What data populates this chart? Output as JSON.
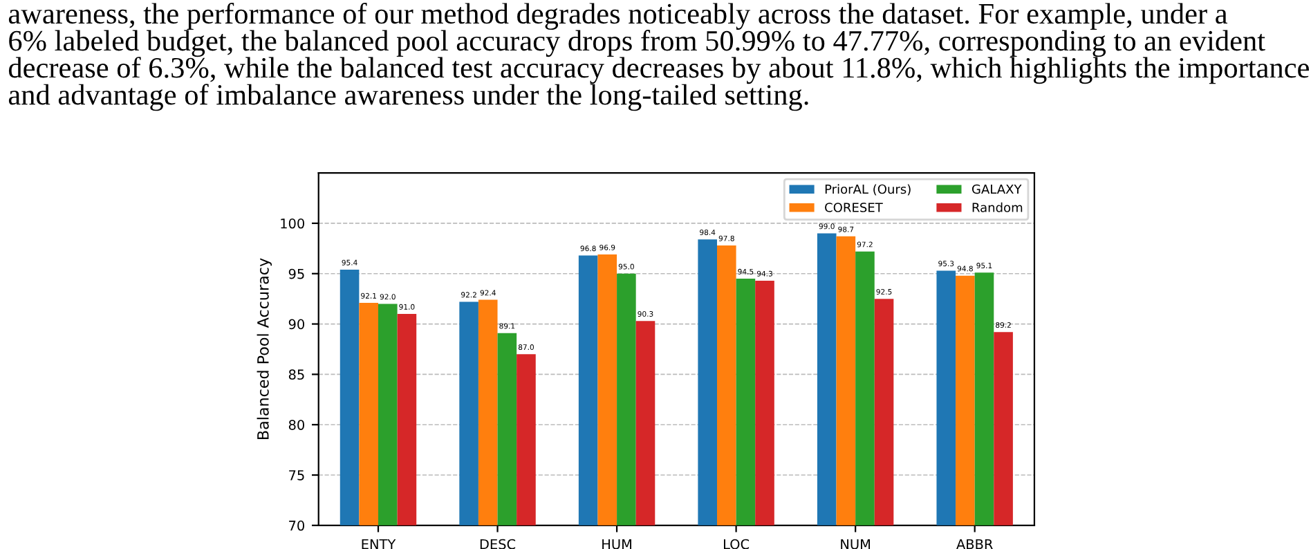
{
  "chart_data": {
    "type": "bar",
    "annotations": [
      "awareness, the performance of our method degrades noticeably across the dataset. For example, under a\n6% labeled budget, the balanced pool accuracy drops from 50.99% to 47.77%, corresponding to an evident\ndecrease of 6.3%, while the balanced test accuracy decreases by about 11.8%, which highlights the importance\nand advantage of imbalance awareness under the long-tailed setting."
    ],
    "ylabel": "Balanced Pool Accuracy",
    "categories": [
      "ENTY",
      "DESC",
      "HUM",
      "LOC",
      "NUM",
      "ABBR"
    ],
    "series": [
      {
        "name": "PriorAL (Ours)",
        "color": "#1f77b4",
        "values": [
          95.4,
          92.2,
          96.8,
          98.4,
          99.0,
          95.3
        ],
        "value_labels": [
          "95.4",
          "92.2",
          "96.8",
          "98.4",
          "99.0",
          "95.3"
        ]
      },
      {
        "name": "CORESET",
        "color": "#ff7f0e",
        "values": [
          92.1,
          92.4,
          96.9,
          97.8,
          98.7,
          94.8
        ],
        "value_labels": [
          "92.1",
          "92.4",
          "96.9",
          "97.8",
          "98.7",
          "94.8"
        ]
      },
      {
        "name": "GALAXY",
        "color": "#2ca02c",
        "values": [
          92.0,
          89.1,
          95.0,
          94.5,
          97.2,
          95.1
        ],
        "value_labels": [
          "92.0",
          "89.1",
          "95.0",
          "94.5",
          "97.2",
          "95.1"
        ]
      },
      {
        "name": "Random",
        "color": "#d62728",
        "values": [
          91.0,
          87.0,
          90.3,
          94.3,
          92.5,
          89.2
        ],
        "value_labels": [
          "91.0",
          "87.0",
          "90.3",
          "94.3",
          "92.5",
          "89.2"
        ]
      }
    ],
    "ylim": [
      70,
      105
    ],
    "yticks": [
      70,
      75,
      80,
      85,
      90,
      95,
      100
    ],
    "grid": "y",
    "legend": "top right"
  }
}
